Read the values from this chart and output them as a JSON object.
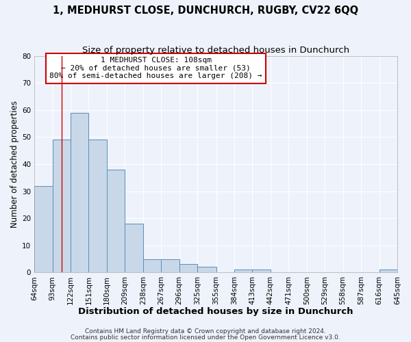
{
  "title": "1, MEDHURST CLOSE, DUNCHURCH, RUGBY, CV22 6QQ",
  "subtitle": "Size of property relative to detached houses in Dunchurch",
  "xlabel": "Distribution of detached houses by size in Dunchurch",
  "ylabel": "Number of detached properties",
  "bar_color": "#c8d8e8",
  "bar_edge_color": "#5b8db8",
  "bg_color": "#eef2fb",
  "grid_color": "#ffffff",
  "vline_x": 108,
  "vline_color": "#cc0000",
  "bin_edges": [
    64,
    93,
    122,
    151,
    180,
    209,
    238,
    267,
    296,
    325,
    355,
    384,
    413,
    442,
    471,
    500,
    529,
    558,
    587,
    616,
    645
  ],
  "bar_heights": [
    32,
    49,
    59,
    49,
    38,
    18,
    5,
    5,
    3,
    2,
    0,
    1,
    1,
    0,
    0,
    0,
    0,
    0,
    0,
    1
  ],
  "tick_labels": [
    "64sqm",
    "93sqm",
    "122sqm",
    "151sqm",
    "180sqm",
    "209sqm",
    "238sqm",
    "267sqm",
    "296sqm",
    "325sqm",
    "355sqm",
    "384sqm",
    "413sqm",
    "442sqm",
    "471sqm",
    "500sqm",
    "529sqm",
    "558sqm",
    "587sqm",
    "616sqm",
    "645sqm"
  ],
  "ylim": [
    0,
    80
  ],
  "yticks": [
    0,
    10,
    20,
    30,
    40,
    50,
    60,
    70,
    80
  ],
  "annotation_text": "1 MEDHURST CLOSE: 108sqm\n← 20% of detached houses are smaller (53)\n80% of semi-detached houses are larger (208) →",
  "annotation_box_color": "#ffffff",
  "annotation_box_edge": "#cc0000",
  "footer1": "Contains HM Land Registry data © Crown copyright and database right 2024.",
  "footer2": "Contains public sector information licensed under the Open Government Licence v3.0.",
  "title_fontsize": 10.5,
  "subtitle_fontsize": 9.5,
  "xlabel_fontsize": 9.5,
  "ylabel_fontsize": 8.5,
  "tick_fontsize": 7.5,
  "annotation_fontsize": 8,
  "footer_fontsize": 6.5
}
